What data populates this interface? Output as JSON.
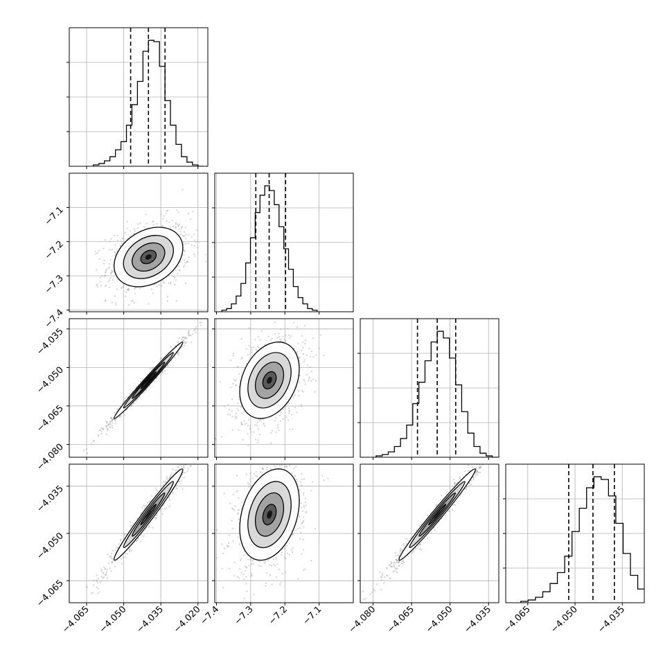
{
  "chart_data": {
    "type": "corner",
    "title": "",
    "n_params": 4,
    "params": [
      {
        "label": "",
        "range": [
          -4.072,
          -4.016
        ],
        "ticks": [
          -4.065,
          -4.05,
          -4.035,
          -4.02
        ],
        "tick_labels": [
          "−4.065",
          "−4.050",
          "−4.035",
          "−4.020"
        ],
        "mean": -4.04,
        "quantiles": [
          -4.0472,
          -4.04,
          -4.0333
        ]
      },
      {
        "label": "",
        "range": [
          -7.405,
          -7.0
        ],
        "ticks": [
          -7.4,
          -7.3,
          -7.2,
          -7.1
        ],
        "tick_labels": [
          "−7.4",
          "−7.3",
          "−7.2",
          "−7.1"
        ],
        "mean": -7.245,
        "quantiles": [
          -7.285,
          -7.246,
          -7.198
        ]
      },
      {
        "label": "",
        "range": [
          -4.085,
          -4.031
        ],
        "ticks": [
          -4.08,
          -4.065,
          -4.05,
          -4.035
        ],
        "tick_labels": [
          "−4.080",
          "−4.065",
          "−4.050",
          "−4.035"
        ],
        "mean": -4.055,
        "quantiles": [
          -4.0627,
          -4.055,
          -4.0478
        ]
      },
      {
        "label": "",
        "range": [
          -4.072,
          -4.028
        ],
        "ticks": [
          -4.065,
          -4.05,
          -4.035
        ],
        "tick_labels": [
          "−4.065",
          "−4.050",
          "−4.035"
        ],
        "mean": -4.044,
        "quantiles": [
          -4.052,
          -4.0443,
          -4.0375
        ]
      }
    ],
    "histograms": [
      {
        "param": 0,
        "counts": [
          1,
          2,
          4,
          7,
          12,
          18,
          30,
          45,
          62,
          84,
          92,
          91,
          73,
          48,
          30,
          16,
          7,
          3,
          1,
          0
        ]
      },
      {
        "param": 1,
        "counts": [
          1,
          2,
          5,
          10,
          18,
          31,
          47,
          63,
          74,
          80,
          77,
          68,
          54,
          40,
          27,
          16,
          9,
          5,
          2,
          1
        ]
      },
      {
        "param": 2,
        "counts": [
          1,
          2,
          4,
          8,
          14,
          24,
          40,
          56,
          72,
          86,
          94,
          89,
          74,
          54,
          34,
          18,
          8,
          3,
          1,
          0
        ]
      },
      {
        "param": 3,
        "counts": [
          1,
          2,
          4,
          8,
          14,
          22,
          34,
          52,
          69,
          84,
          92,
          90,
          78,
          58,
          36,
          20,
          10,
          4,
          1,
          0
        ]
      }
    ],
    "correlations": [
      {
        "x": 0,
        "y": 1,
        "r": 0.3
      },
      {
        "x": 0,
        "y": 2,
        "r": 0.99
      },
      {
        "x": 1,
        "y": 2,
        "r": 0.3
      },
      {
        "x": 0,
        "y": 3,
        "r": 0.98
      },
      {
        "x": 1,
        "y": 3,
        "r": 0.3
      },
      {
        "x": 2,
        "y": 3,
        "r": 0.985
      }
    ],
    "grid": true,
    "colors": {
      "density": "#000000",
      "scatter": "#a6a6a6",
      "grid": "#b0b0b0",
      "quantile_line": "#000000"
    }
  }
}
